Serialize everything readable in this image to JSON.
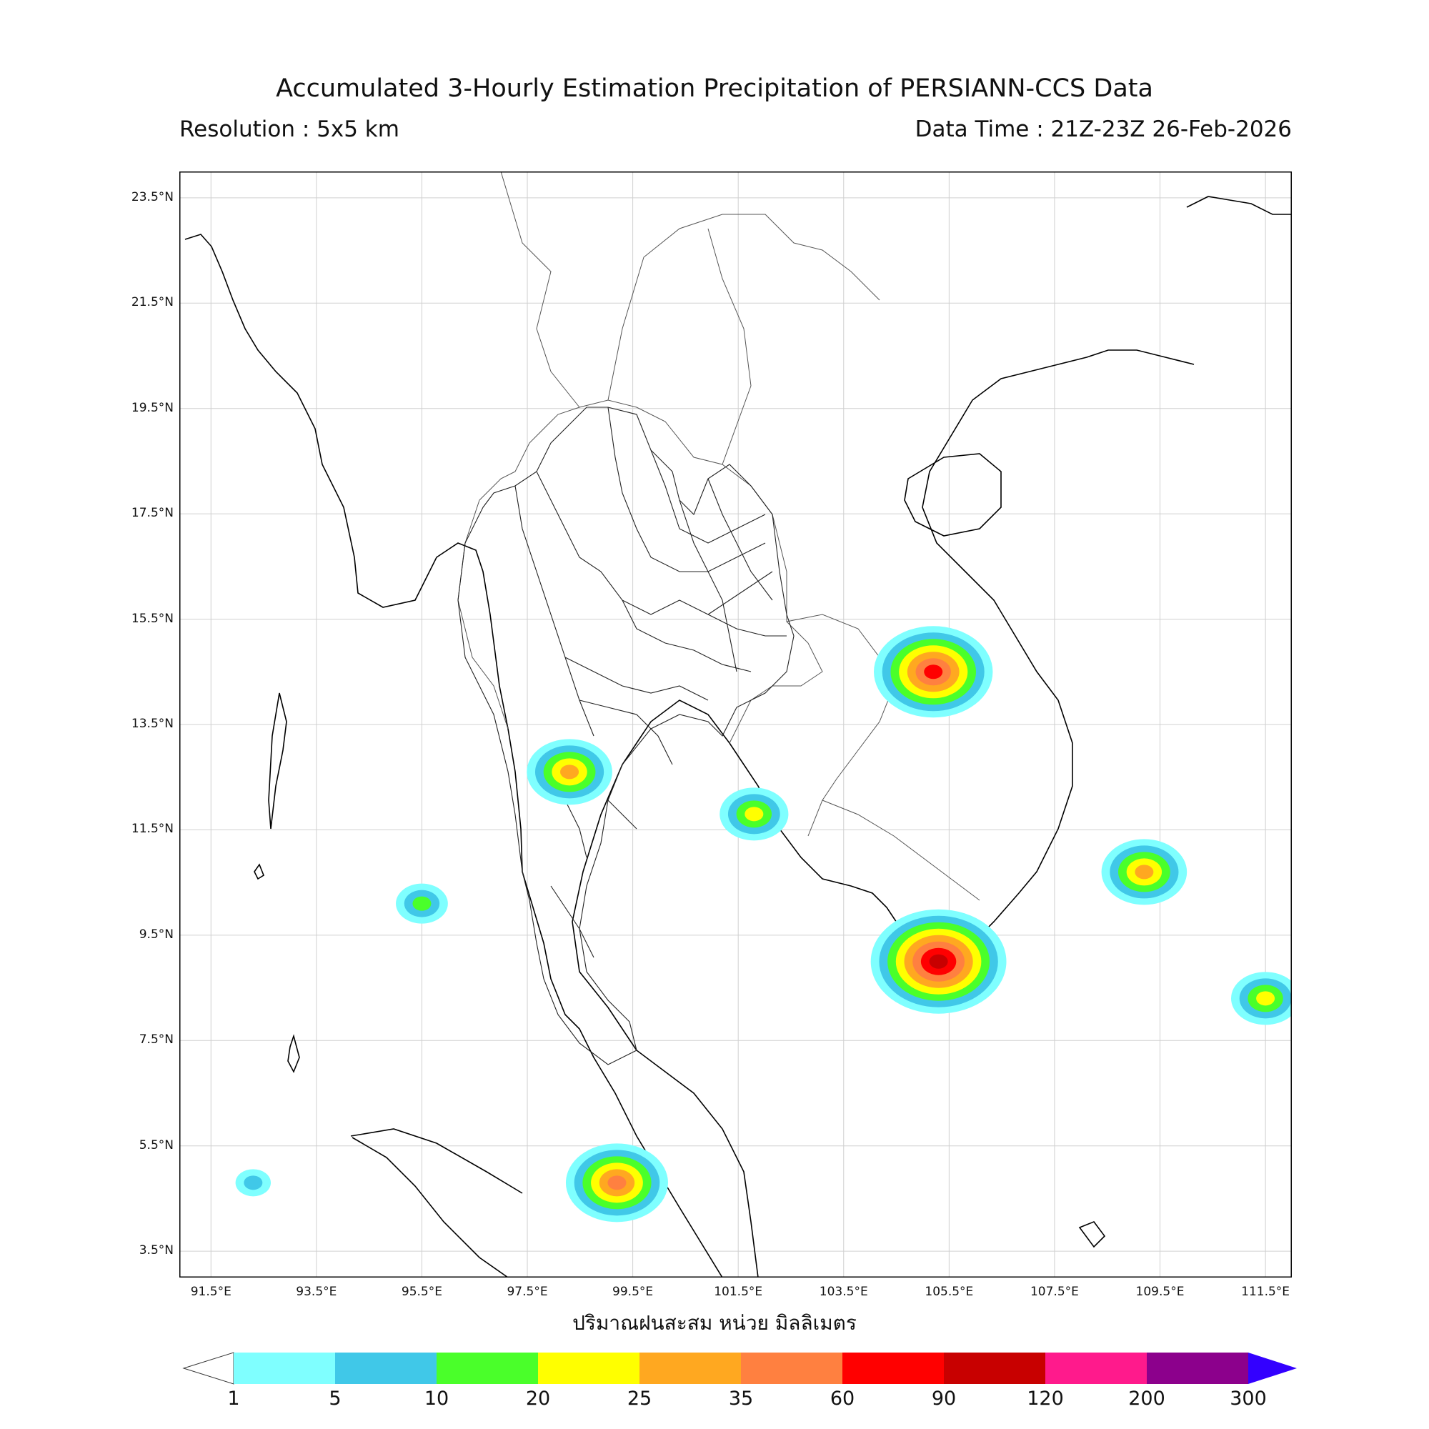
{
  "header": {
    "title": "Accumulated 3-Hourly Estimation Precipitation of PERSIANN-CCS Data",
    "resolution": "Resolution : 5x5 km",
    "data_time": "Data Time : 21Z-23Z 26-Feb-2026"
  },
  "axes": {
    "lat_labels": [
      "23.5°N",
      "21.5°N",
      "19.5°N",
      "17.5°N",
      "15.5°N",
      "13.5°N",
      "11.5°N",
      "9.5°N",
      "7.5°N",
      "5.5°N",
      "3.5°N"
    ],
    "lon_labels": [
      "91.5°E",
      "93.5°E",
      "95.5°E",
      "97.5°E",
      "99.5°E",
      "101.5°E",
      "103.5°E",
      "105.5°E",
      "107.5°E",
      "109.5°E",
      "111.5°E"
    ],
    "lat_range": [
      3.0,
      24.0
    ],
    "lon_range": [
      90.9,
      112.0
    ]
  },
  "unit_label": "ปริมาณฝนสะสม หน่วย มิลลิเมตร",
  "colorbar": {
    "labels": [
      "1",
      "5",
      "10",
      "20",
      "25",
      "35",
      "60",
      "90",
      "120",
      "200",
      "300"
    ],
    "colors": [
      "#7fffff",
      "#40c8e8",
      "#4aff2a",
      "#ffff00",
      "#ffa820",
      "#ff8040",
      "#ff0000",
      "#c80000",
      "#ff1a8c",
      "#8c008c",
      "#3300ff"
    ]
  },
  "precip_cells": [
    {
      "lat": 14.5,
      "lon": 105.2,
      "mm": 60
    },
    {
      "lat": 9.0,
      "lon": 105.3,
      "mm": 90
    },
    {
      "lat": 4.8,
      "lon": 99.2,
      "mm": 35
    },
    {
      "lat": 12.6,
      "lon": 98.3,
      "mm": 25
    },
    {
      "lat": 11.8,
      "lon": 101.8,
      "mm": 20
    },
    {
      "lat": 10.1,
      "lon": 95.5,
      "mm": 10
    },
    {
      "lat": 4.8,
      "lon": 92.3,
      "mm": 5
    },
    {
      "lat": 10.7,
      "lon": 109.2,
      "mm": 25
    },
    {
      "lat": 8.3,
      "lon": 111.5,
      "mm": 20
    }
  ]
}
